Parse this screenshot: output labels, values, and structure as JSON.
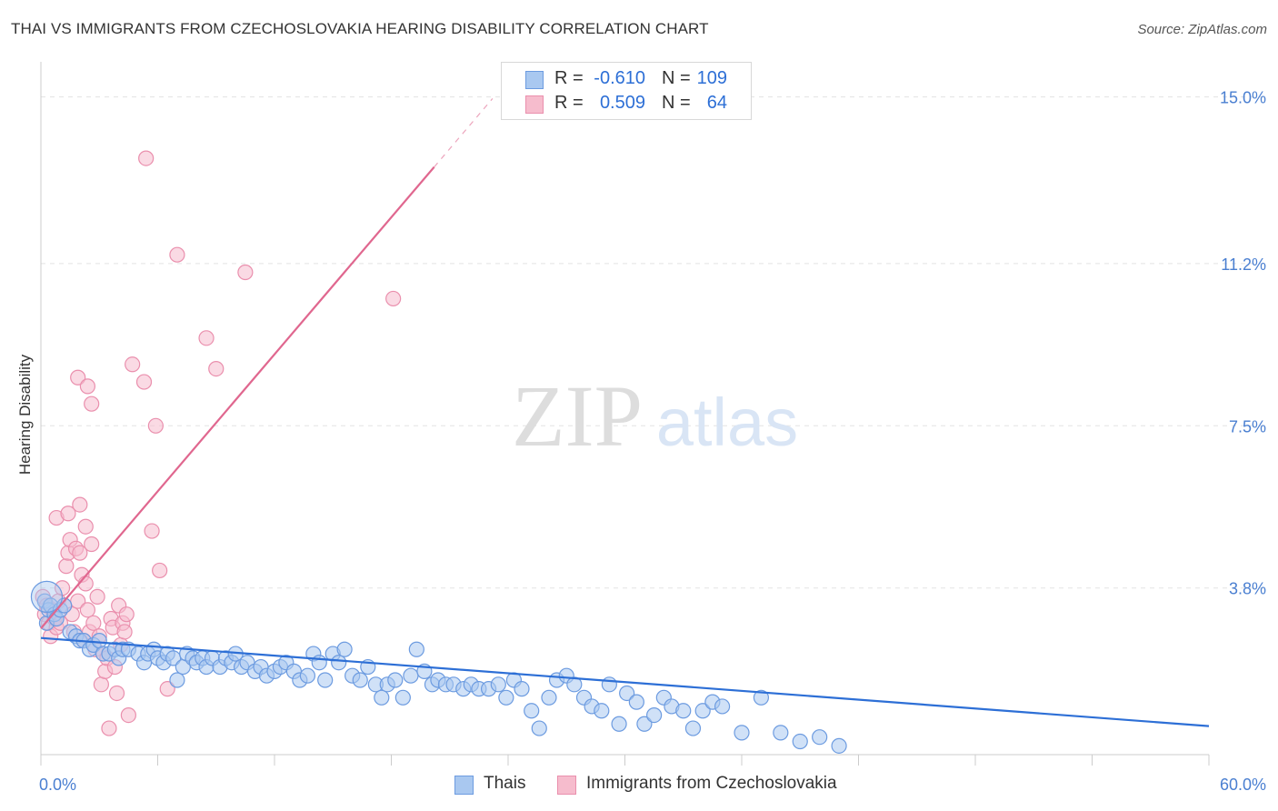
{
  "title": "THAI VS IMMIGRANTS FROM CZECHOSLOVAKIA HEARING DISABILITY CORRELATION CHART",
  "source": "Source: ZipAtlas.com",
  "watermark": {
    "zip": "ZIP",
    "atlas": "atlas"
  },
  "colors": {
    "thais_fill": "#a9c8f0",
    "thais_stroke": "#6c9be0",
    "thais_line": "#2d6fd6",
    "czech_fill": "#f6bccd",
    "czech_stroke": "#ea8fad",
    "czech_line": "#e0678f",
    "grid": "#e3e3e3",
    "axis_text": "#4a7fd1",
    "stat_value": "#2d6fd6"
  },
  "stats": [
    {
      "series": "Thais",
      "r_label": "R =",
      "r_value": "-0.610",
      "n_label": "N =",
      "n_value": "109"
    },
    {
      "series": "Immigrants from Czechoslovakia",
      "r_label": "R =",
      "r_value": "0.509",
      "n_label": "N =",
      "n_value": "64"
    }
  ],
  "legend": [
    {
      "label": "Thais"
    },
    {
      "label": "Immigrants from Czechoslovakia"
    }
  ],
  "chart_data": {
    "type": "scatter",
    "title": "THAI VS IMMIGRANTS FROM CZECHOSLOVAKIA HEARING DISABILITY CORRELATION CHART",
    "xlabel": "",
    "ylabel": "Hearing Disability",
    "xlim": [
      0,
      60
    ],
    "ylim": [
      0,
      15.8
    ],
    "x_tick_labels": [
      "0.0%",
      "60.0%"
    ],
    "y_ticks": [
      3.8,
      7.5,
      11.2,
      15.0
    ],
    "y_tick_labels": [
      "3.8%",
      "7.5%",
      "11.2%",
      "15.0%"
    ],
    "grid": true,
    "legend_position": "bottom-center",
    "series": [
      {
        "name": "Thais",
        "trendline": {
          "x": [
            0,
            60
          ],
          "y": [
            2.66,
            0.65
          ]
        },
        "points": [
          [
            0.2,
            3.5
          ],
          [
            0.3,
            3.0
          ],
          [
            0.4,
            3.3
          ],
          [
            0.5,
            3.4
          ],
          [
            0.7,
            3.2
          ],
          [
            0.8,
            3.1
          ],
          [
            1.0,
            3.3
          ],
          [
            1.2,
            3.4
          ],
          [
            1.5,
            2.8
          ],
          [
            1.8,
            2.7
          ],
          [
            2.0,
            2.6
          ],
          [
            2.2,
            2.6
          ],
          [
            2.5,
            2.4
          ],
          [
            2.7,
            2.5
          ],
          [
            3.0,
            2.6
          ],
          [
            3.2,
            2.3
          ],
          [
            3.5,
            2.3
          ],
          [
            3.8,
            2.4
          ],
          [
            4.0,
            2.2
          ],
          [
            4.2,
            2.4
          ],
          [
            4.5,
            2.4
          ],
          [
            5.0,
            2.3
          ],
          [
            5.3,
            2.1
          ],
          [
            5.5,
            2.3
          ],
          [
            5.8,
            2.4
          ],
          [
            6.0,
            2.2
          ],
          [
            6.3,
            2.1
          ],
          [
            6.5,
            2.3
          ],
          [
            6.8,
            2.2
          ],
          [
            7.0,
            1.7
          ],
          [
            7.3,
            2.0
          ],
          [
            7.5,
            2.3
          ],
          [
            7.8,
            2.2
          ],
          [
            8.0,
            2.1
          ],
          [
            8.3,
            2.2
          ],
          [
            8.5,
            2.0
          ],
          [
            8.8,
            2.2
          ],
          [
            9.2,
            2.0
          ],
          [
            9.5,
            2.2
          ],
          [
            9.8,
            2.1
          ],
          [
            10.0,
            2.3
          ],
          [
            10.3,
            2.0
          ],
          [
            10.6,
            2.1
          ],
          [
            11.0,
            1.9
          ],
          [
            11.3,
            2.0
          ],
          [
            11.6,
            1.8
          ],
          [
            12.0,
            1.9
          ],
          [
            12.3,
            2.0
          ],
          [
            12.6,
            2.1
          ],
          [
            13.0,
            1.9
          ],
          [
            13.3,
            1.7
          ],
          [
            13.7,
            1.8
          ],
          [
            14.0,
            2.3
          ],
          [
            14.3,
            2.1
          ],
          [
            14.6,
            1.7
          ],
          [
            15.0,
            2.3
          ],
          [
            15.3,
            2.1
          ],
          [
            15.6,
            2.4
          ],
          [
            16.0,
            1.8
          ],
          [
            16.4,
            1.7
          ],
          [
            16.8,
            2.0
          ],
          [
            17.2,
            1.6
          ],
          [
            17.5,
            1.3
          ],
          [
            17.8,
            1.6
          ],
          [
            18.2,
            1.7
          ],
          [
            18.6,
            1.3
          ],
          [
            19.0,
            1.8
          ],
          [
            19.3,
            2.4
          ],
          [
            19.7,
            1.9
          ],
          [
            20.1,
            1.6
          ],
          [
            20.4,
            1.7
          ],
          [
            20.8,
            1.6
          ],
          [
            21.2,
            1.6
          ],
          [
            21.7,
            1.5
          ],
          [
            22.1,
            1.6
          ],
          [
            22.5,
            1.5
          ],
          [
            23.0,
            1.5
          ],
          [
            23.5,
            1.6
          ],
          [
            23.9,
            1.3
          ],
          [
            24.3,
            1.7
          ],
          [
            24.7,
            1.5
          ],
          [
            25.2,
            1.0
          ],
          [
            25.6,
            0.6
          ],
          [
            26.1,
            1.3
          ],
          [
            26.5,
            1.7
          ],
          [
            27.0,
            1.8
          ],
          [
            27.4,
            1.6
          ],
          [
            27.9,
            1.3
          ],
          [
            28.3,
            1.1
          ],
          [
            28.8,
            1.0
          ],
          [
            29.2,
            1.6
          ],
          [
            29.7,
            0.7
          ],
          [
            30.1,
            1.4
          ],
          [
            30.6,
            1.2
          ],
          [
            31.0,
            0.7
          ],
          [
            31.5,
            0.9
          ],
          [
            32.0,
            1.3
          ],
          [
            32.4,
            1.1
          ],
          [
            33.0,
            1.0
          ],
          [
            33.5,
            0.6
          ],
          [
            34.0,
            1.0
          ],
          [
            34.5,
            1.2
          ],
          [
            35.0,
            1.1
          ],
          [
            36.0,
            0.5
          ],
          [
            37.0,
            1.3
          ],
          [
            38.0,
            0.5
          ],
          [
            39.0,
            0.3
          ],
          [
            40.0,
            0.4
          ],
          [
            41.0,
            0.2
          ]
        ]
      },
      {
        "name": "Immigrants from Czechoslovakia",
        "trendline": {
          "x": [
            0,
            20.2
          ],
          "y": [
            2.88,
            13.4
          ]
        },
        "points": [
          [
            0.1,
            3.6
          ],
          [
            0.2,
            3.2
          ],
          [
            0.3,
            3.4
          ],
          [
            0.4,
            3.0
          ],
          [
            0.5,
            2.7
          ],
          [
            0.6,
            3.3
          ],
          [
            0.7,
            3.1
          ],
          [
            0.8,
            2.9
          ],
          [
            0.9,
            3.5
          ],
          [
            1.0,
            3.0
          ],
          [
            1.1,
            3.8
          ],
          [
            1.2,
            3.4
          ],
          [
            1.3,
            4.3
          ],
          [
            1.4,
            4.6
          ],
          [
            1.5,
            4.9
          ],
          [
            1.6,
            3.2
          ],
          [
            1.7,
            2.8
          ],
          [
            1.8,
            4.7
          ],
          [
            1.9,
            3.5
          ],
          [
            2.0,
            4.6
          ],
          [
            2.1,
            4.1
          ],
          [
            2.2,
            2.6
          ],
          [
            2.3,
            3.9
          ],
          [
            2.4,
            3.3
          ],
          [
            2.5,
            2.8
          ],
          [
            2.6,
            4.8
          ],
          [
            2.7,
            3.0
          ],
          [
            2.8,
            2.4
          ],
          [
            2.9,
            3.6
          ],
          [
            3.0,
            2.7
          ],
          [
            3.1,
            1.6
          ],
          [
            3.2,
            2.3
          ],
          [
            3.3,
            1.9
          ],
          [
            3.4,
            2.2
          ],
          [
            3.5,
            0.6
          ],
          [
            3.6,
            3.1
          ],
          [
            3.7,
            2.9
          ],
          [
            3.8,
            2.0
          ],
          [
            3.9,
            1.4
          ],
          [
            4.0,
            3.4
          ],
          [
            4.1,
            2.5
          ],
          [
            4.2,
            3.0
          ],
          [
            4.3,
            2.8
          ],
          [
            4.4,
            3.2
          ],
          [
            4.5,
            0.9
          ],
          [
            2.6,
            8.0
          ],
          [
            1.9,
            8.6
          ],
          [
            2.4,
            8.4
          ],
          [
            5.3,
            8.5
          ],
          [
            4.7,
            8.9
          ],
          [
            0.8,
            5.4
          ],
          [
            1.4,
            5.5
          ],
          [
            2.0,
            5.7
          ],
          [
            5.7,
            5.1
          ],
          [
            5.9,
            7.5
          ],
          [
            6.1,
            4.2
          ],
          [
            9.0,
            8.8
          ],
          [
            8.5,
            9.5
          ],
          [
            5.4,
            13.6
          ],
          [
            7.0,
            11.4
          ],
          [
            10.5,
            11.0
          ],
          [
            18.1,
            10.4
          ],
          [
            2.3,
            5.2
          ],
          [
            6.5,
            1.5
          ]
        ]
      }
    ]
  }
}
